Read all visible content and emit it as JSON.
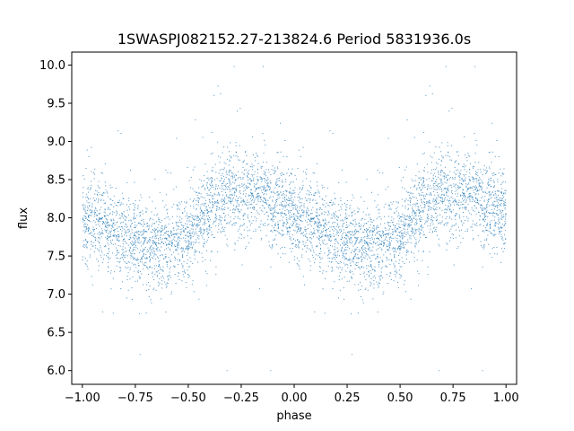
{
  "chart_data": {
    "type": "scatter",
    "title": "1SWASPJ082152.27-213824.6 Period 5831936.0s",
    "xlabel": "phase",
    "ylabel": "flux",
    "xlim": [
      -1.05,
      1.05
    ],
    "ylim": [
      5.82,
      10.17
    ],
    "xticks": [
      -1.0,
      -0.75,
      -0.5,
      -0.25,
      0.0,
      0.25,
      0.5,
      0.75,
      1.0
    ],
    "xtick_labels": [
      "−1.00",
      "−0.75",
      "−0.50",
      "−0.25",
      "0.00",
      "0.25",
      "0.50",
      "0.75",
      "1.00"
    ],
    "yticks": [
      6.0,
      6.5,
      7.0,
      7.5,
      8.0,
      8.5,
      9.0,
      9.5,
      10.0
    ],
    "ytick_labels": [
      "6.0",
      "6.5",
      "7.0",
      "7.5",
      "8.0",
      "8.5",
      "9.0",
      "9.5",
      "10.0"
    ],
    "grid": false,
    "marker_color": "#1f77b4",
    "series": [
      {
        "phase_profile": [
          [
            0.0,
            8.0
          ],
          [
            0.05,
            7.95
          ],
          [
            0.1,
            7.88
          ],
          [
            0.15,
            7.82
          ],
          [
            0.2,
            7.75
          ],
          [
            0.25,
            7.7
          ],
          [
            0.28,
            7.62
          ],
          [
            0.32,
            7.6
          ],
          [
            0.4,
            7.65
          ],
          [
            0.45,
            7.7
          ],
          [
            0.5,
            7.78
          ],
          [
            0.55,
            7.95
          ],
          [
            0.6,
            8.1
          ],
          [
            0.65,
            8.25
          ],
          [
            0.7,
            8.3
          ],
          [
            0.75,
            8.35
          ],
          [
            0.8,
            8.35
          ],
          [
            0.85,
            8.3
          ],
          [
            0.9,
            8.2
          ],
          [
            0.95,
            8.1
          ],
          [
            1.0,
            8.0
          ]
        ],
        "scatter_sd": 0.28,
        "points_per_cycle": 2600
      }
    ]
  }
}
